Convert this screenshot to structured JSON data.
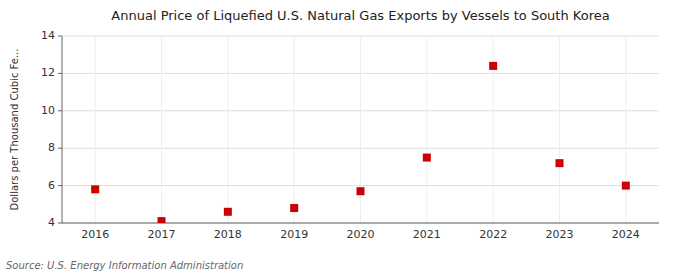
{
  "chart_data": {
    "type": "scatter",
    "title": "Annual Price of Liquefied U.S. Natural Gas Exports by Vessels to South Korea",
    "ylabel": "Dollars per Thousand Cubic Fe...",
    "source": "Source: U.S. Energy Information Administration",
    "x": [
      2016,
      2017,
      2018,
      2019,
      2020,
      2021,
      2022,
      2023,
      2024
    ],
    "values": [
      5.8,
      4.1,
      4.6,
      4.8,
      5.7,
      7.5,
      12.4,
      7.2,
      6.0
    ],
    "xlim": [
      2015.5,
      2024.5
    ],
    "xticks": [
      2016,
      2017,
      2018,
      2019,
      2020,
      2021,
      2022,
      2023,
      2024
    ],
    "ylim": [
      4,
      14
    ],
    "yticks": [
      4,
      6,
      8,
      10,
      12,
      14
    ],
    "color": "#cc0000",
    "marker": "square",
    "grid": true
  }
}
